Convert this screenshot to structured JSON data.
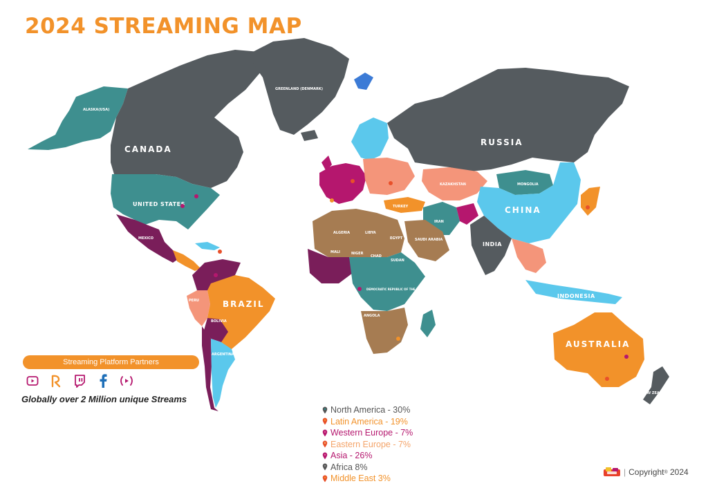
{
  "title": "2024 STREAMING MAP",
  "map": {
    "labels": {
      "canada": "CANADA",
      "united_states": "UNITED STATES",
      "alaska": "ALASKA(USA)",
      "greenland": "GREENLAND (DENMARK)",
      "russia": "RUSSIA",
      "china": "CHINA",
      "india": "INDIA",
      "indonesia": "INDONESIA",
      "australia": "AUSTRALIA",
      "brazil": "BRAZIL",
      "mexico": "MEXICO",
      "argentina": "ARGENTINA",
      "bolivia": "BOLIVIA",
      "peru": "PERU",
      "kazakhstan": "KAZAKHSTAN",
      "mongolia": "MONGOLIA",
      "iran": "IRAN",
      "turkey": "TURKEY",
      "saudi_arabia": "SAUDI ARABIA",
      "algeria": "ALGERIA",
      "libya": "LIBYA",
      "egypt": "EGYPT",
      "niger": "NIGER",
      "mali": "MALI",
      "chad": "CHAD",
      "sudan": "SUDAN",
      "drc": "DEMOCRATIC REPUBLIC OF THE CONGO",
      "angola": "ANGOLA",
      "new_zealand": "NEW ZEALAND"
    }
  },
  "partners": {
    "title": "Streaming Platform Partners",
    "icons": [
      "youtube-icon",
      "rumble-icon",
      "twitch-icon",
      "facebook-icon",
      "play-icon"
    ]
  },
  "tagline": "Globally over 2 Million unique Streams",
  "legend": [
    {
      "label": "North America - 30%",
      "color": "#555555",
      "pin": "#2E8B8B"
    },
    {
      "label": "Latin America - 19%",
      "color": "#F2922A",
      "pin": "#E8502A"
    },
    {
      "label": "Western Europe - 7%",
      "color": "#B5176E",
      "pin": "#B5176E"
    },
    {
      "label": "Eastern Europe - 7%",
      "color": "#F4A46A",
      "pin": "#E8502A"
    },
    {
      "label": "Asia - 26%",
      "color": "#B5176E",
      "pin": "#B5176E"
    },
    {
      "label": "Africa 8%",
      "color": "#555555",
      "pin": "#555555"
    },
    {
      "label": "Middle East 3%",
      "color": "#F2922A",
      "pin": "#E8502A"
    }
  ],
  "colors": {
    "orange": "#F2922A",
    "dark_gray": "#555B5F",
    "teal": "#3E8F8F",
    "light_blue": "#5BC8EC",
    "magenta": "#B5176E",
    "salmon": "#F4957A",
    "brown": "#A67C52",
    "purple": "#7A1E5A"
  },
  "copyright": {
    "text": "Copyright",
    "mark": "®",
    "year": "2024"
  }
}
